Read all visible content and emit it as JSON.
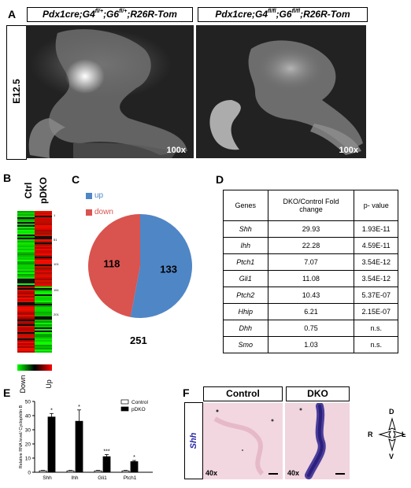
{
  "panels": {
    "A": {
      "label": "A",
      "header_left": {
        "p1": "Pdx1cre;G4",
        "s1": "fl/+",
        "p2": ";G6",
        "s2": "fl/+",
        "p3": ";R26R-Tom"
      },
      "header_right": {
        "p1": "Pdx1cre;G4",
        "s1": "fl/fl",
        "p2": ";G6",
        "s2": "fl/fl",
        "p3": ";R26R-Tom"
      },
      "stage": "E12.5",
      "mag_left": "100x",
      "mag_right": "100x"
    },
    "B": {
      "label": "B",
      "col_ctrl": "Ctrl",
      "col_pdko": "pDKO",
      "row_ticks": [
        "1",
        "51",
        "101",
        "151",
        "201"
      ],
      "legend_down": "Down",
      "legend_up": "Up"
    },
    "C": {
      "label": "C",
      "legend": [
        {
          "name": "up",
          "color": "#4f86c6"
        },
        {
          "name": "down",
          "color": "#d9534f"
        }
      ],
      "total": "251"
    },
    "D": {
      "label": "D",
      "headers": [
        "Genes",
        "DKO/Control Fold change",
        "p- value"
      ],
      "rows": [
        {
          "gene": "Shh",
          "fold": "29.93",
          "p": "1.93E-11"
        },
        {
          "gene": "Ihh",
          "fold": "22.28",
          "p": "4.59E-11"
        },
        {
          "gene": "Ptch1",
          "fold": "7.07",
          "p": "3.54E-12"
        },
        {
          "gene": "Gli1",
          "fold": "11.08",
          "p": "3.54E-12"
        },
        {
          "gene": "Ptch2",
          "fold": "10.43",
          "p": "5.37E-07"
        },
        {
          "gene": "Hhip",
          "fold": "6.21",
          "p": "2.15E-07"
        },
        {
          "gene": "Dhh",
          "fold": "0.75",
          "p": "n.s."
        },
        {
          "gene": "Smo",
          "fold": "1.03",
          "p": "n.s."
        }
      ]
    },
    "E": {
      "label": "E",
      "legend_control": "Control",
      "legend_pdko": "pDKO"
    },
    "F": {
      "label": "F",
      "header_control": "Control",
      "header_dko": "DKO",
      "gene": "Shh",
      "mag_left": "40x",
      "mag_right": "40x",
      "compass": {
        "d": "D",
        "v": "V",
        "r": "R",
        "l": "L"
      }
    }
  },
  "chart_data": [
    {
      "type": "pie",
      "panel": "C",
      "categories": [
        "up",
        "down"
      ],
      "values": [
        133,
        118
      ],
      "colors": [
        "#4f86c6",
        "#d9534f"
      ],
      "total": 251
    },
    {
      "type": "bar",
      "panel": "E",
      "categories": [
        "Shh",
        "Ihh",
        "Gli1",
        "Ptch1"
      ],
      "ylabel": "Relative RNA level/ Cyclophilin B",
      "ylim": [
        0,
        50
      ],
      "yticks": [
        0,
        10,
        20,
        30,
        40,
        50
      ],
      "series": [
        {
          "name": "Control",
          "values": [
            1,
            1,
            1,
            1
          ],
          "errors": [
            0.3,
            0.3,
            0.3,
            0.3
          ],
          "color": "#ffffff"
        },
        {
          "name": "pDKO",
          "values": [
            39,
            36,
            11,
            7.5
          ],
          "errors": [
            2.5,
            8,
            1.5,
            0.8
          ],
          "color": "#000000"
        }
      ],
      "significance": [
        "*",
        "*",
        "***",
        "*"
      ]
    }
  ]
}
